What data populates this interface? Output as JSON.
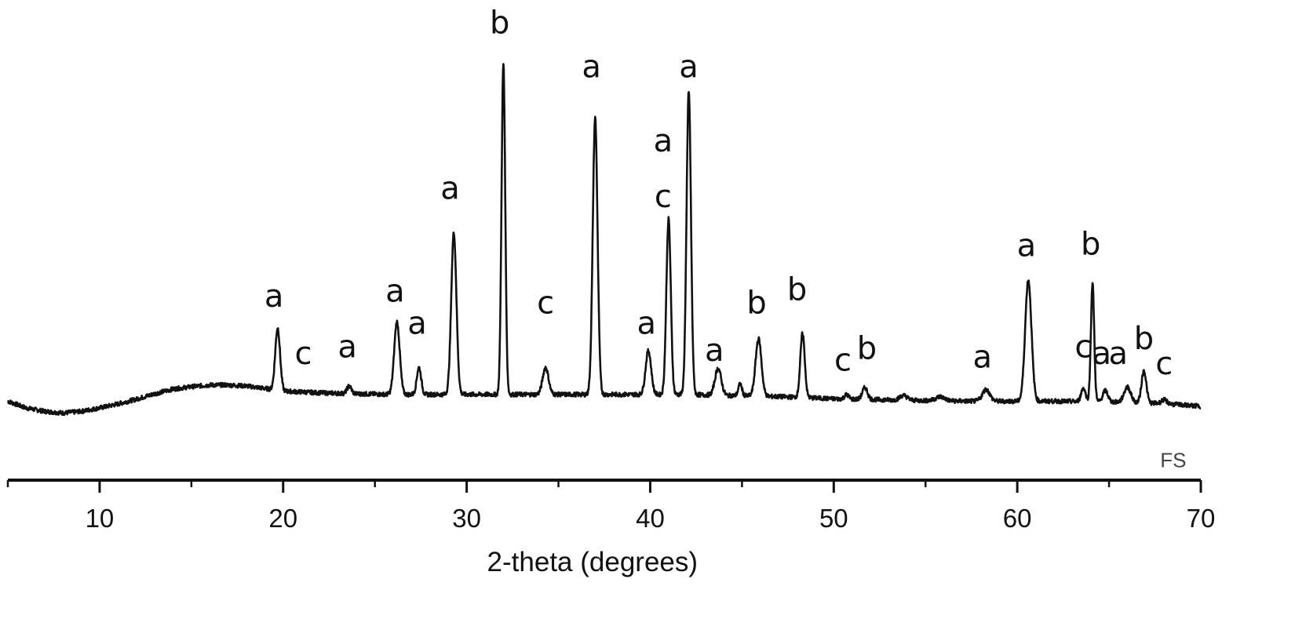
{
  "chart_data": {
    "type": "line",
    "xlabel": "2-theta (degrees)",
    "ylabel": "",
    "xlim": [
      5,
      70
    ],
    "ylim": [
      -5,
      100
    ],
    "x_ticks": [
      10,
      20,
      30,
      40,
      50,
      60,
      70
    ],
    "y_axis_visible": false,
    "grid": false,
    "series": [
      {
        "name": "FS",
        "color": "#111111",
        "baseline": [
          [
            5,
            2
          ],
          [
            6,
            0
          ],
          [
            7,
            -1
          ],
          [
            8,
            -1.5
          ],
          [
            9,
            -1
          ],
          [
            10,
            0
          ],
          [
            11,
            1.2
          ],
          [
            12,
            2.6
          ],
          [
            13,
            4.2
          ],
          [
            14,
            5.6
          ],
          [
            15,
            6.3
          ],
          [
            16,
            6.8
          ],
          [
            17,
            6.8
          ],
          [
            18,
            6.5
          ],
          [
            19,
            5.8
          ],
          [
            20,
            5
          ],
          [
            22,
            4.5
          ],
          [
            24,
            4.2
          ],
          [
            26,
            4
          ],
          [
            28,
            4
          ],
          [
            30,
            4
          ],
          [
            32,
            4
          ],
          [
            34,
            4
          ],
          [
            36,
            4
          ],
          [
            38,
            4
          ],
          [
            40,
            4
          ],
          [
            42,
            4
          ],
          [
            44,
            3.7
          ],
          [
            46,
            3.5
          ],
          [
            48,
            3.2
          ],
          [
            50,
            2.7
          ],
          [
            52,
            2.5
          ],
          [
            54,
            2.3
          ],
          [
            56,
            2.1
          ],
          [
            58,
            2
          ],
          [
            60,
            2
          ],
          [
            62,
            2
          ],
          [
            64,
            1.9
          ],
          [
            66,
            1.7
          ],
          [
            68,
            1.3
          ],
          [
            70,
            0.5
          ]
        ],
        "peaks": [
          {
            "x": 19.7,
            "height": 18.5,
            "width": 0.13
          },
          {
            "x": 23.6,
            "height": 2.2,
            "width": 0.12
          },
          {
            "x": 26.2,
            "height": 21.5,
            "width": 0.15
          },
          {
            "x": 27.4,
            "height": 8,
            "width": 0.12
          },
          {
            "x": 29.3,
            "height": 48,
            "width": 0.14
          },
          {
            "x": 32.0,
            "height": 98,
            "width": 0.1
          },
          {
            "x": 34.3,
            "height": 8,
            "width": 0.16
          },
          {
            "x": 37.0,
            "height": 82,
            "width": 0.13
          },
          {
            "x": 39.9,
            "height": 13,
            "width": 0.15
          },
          {
            "x": 41.0,
            "height": 52,
            "width": 0.12
          },
          {
            "x": 42.1,
            "height": 90,
            "width": 0.12
          },
          {
            "x": 43.7,
            "height": 8,
            "width": 0.17
          },
          {
            "x": 44.9,
            "height": 3.5,
            "width": 0.1
          },
          {
            "x": 45.9,
            "height": 17,
            "width": 0.16
          },
          {
            "x": 48.3,
            "height": 19,
            "width": 0.12
          },
          {
            "x": 50.7,
            "height": 1.3,
            "width": 0.12
          },
          {
            "x": 51.7,
            "height": 3.5,
            "width": 0.14
          },
          {
            "x": 53.8,
            "height": 1.4,
            "width": 0.2
          },
          {
            "x": 55.8,
            "height": 1.2,
            "width": 0.25
          },
          {
            "x": 58.3,
            "height": 3.5,
            "width": 0.2
          },
          {
            "x": 60.6,
            "height": 36,
            "width": 0.17
          },
          {
            "x": 63.6,
            "height": 4,
            "width": 0.12
          },
          {
            "x": 64.1,
            "height": 35,
            "width": 0.09
          },
          {
            "x": 64.8,
            "height": 3.3,
            "width": 0.14
          },
          {
            "x": 66.0,
            "height": 4.5,
            "width": 0.18
          },
          {
            "x": 66.9,
            "height": 9.5,
            "width": 0.13
          },
          {
            "x": 68.0,
            "height": 1.1,
            "width": 0.15
          }
        ]
      }
    ],
    "annotations": [
      {
        "text": "a",
        "x": 19.5,
        "y": 30
      },
      {
        "text": "c",
        "x": 21.1,
        "y": 13
      },
      {
        "text": "a",
        "x": 23.5,
        "y": 15
      },
      {
        "text": "a",
        "x": 26.1,
        "y": 31.5
      },
      {
        "text": "a",
        "x": 27.3,
        "y": 22
      },
      {
        "text": "a",
        "x": 29.1,
        "y": 62
      },
      {
        "text": "b",
        "x": 31.8,
        "y": 111
      },
      {
        "text": "c",
        "x": 34.3,
        "y": 28
      },
      {
        "text": "a",
        "x": 36.8,
        "y": 98
      },
      {
        "text": "a",
        "x": 39.8,
        "y": 22
      },
      {
        "text": "a",
        "x": 40.7,
        "y": 76
      },
      {
        "text": "c",
        "x": 40.7,
        "y": 59.5
      },
      {
        "text": "a",
        "x": 42.1,
        "y": 98
      },
      {
        "text": "a",
        "x": 43.5,
        "y": 14
      },
      {
        "text": "b",
        "x": 45.8,
        "y": 28
      },
      {
        "text": "b",
        "x": 48.0,
        "y": 32
      },
      {
        "text": "c",
        "x": 50.5,
        "y": 11
      },
      {
        "text": "b",
        "x": 51.8,
        "y": 14.5
      },
      {
        "text": "a",
        "x": 58.1,
        "y": 12
      },
      {
        "text": "a",
        "x": 60.5,
        "y": 45
      },
      {
        "text": "b",
        "x": 64.0,
        "y": 45.5
      },
      {
        "text": "c",
        "x": 63.6,
        "y": 15
      },
      {
        "text": "a",
        "x": 64.6,
        "y": 13
      },
      {
        "text": "a",
        "x": 65.5,
        "y": 13
      },
      {
        "text": "b",
        "x": 66.9,
        "y": 17.5
      },
      {
        "text": "c",
        "x": 68.0,
        "y": 10
      }
    ],
    "series_label": {
      "text": "FS",
      "x": 68.5,
      "y": -4.5
    }
  }
}
